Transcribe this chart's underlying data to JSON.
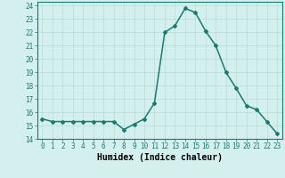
{
  "x": [
    0,
    1,
    2,
    3,
    4,
    5,
    6,
    7,
    8,
    9,
    10,
    11,
    12,
    13,
    14,
    15,
    16,
    17,
    18,
    19,
    20,
    21,
    22,
    23
  ],
  "y": [
    15.5,
    15.3,
    15.3,
    15.3,
    15.3,
    15.3,
    15.3,
    15.3,
    14.7,
    15.1,
    15.5,
    16.7,
    22.0,
    22.5,
    23.8,
    23.5,
    22.1,
    21.0,
    19.0,
    17.8,
    16.5,
    16.2,
    15.3,
    14.4
  ],
  "xlabel": "Humidex (Indice chaleur)",
  "xlim": [
    -0.5,
    23.5
  ],
  "ylim": [
    14,
    24.3
  ],
  "yticks": [
    14,
    15,
    16,
    17,
    18,
    19,
    20,
    21,
    22,
    23,
    24
  ],
  "xticks": [
    0,
    1,
    2,
    3,
    4,
    5,
    6,
    7,
    8,
    9,
    10,
    11,
    12,
    13,
    14,
    15,
    16,
    17,
    18,
    19,
    20,
    21,
    22,
    23
  ],
  "line_color": "#1a7a6e",
  "marker": "D",
  "marker_size": 2.0,
  "bg_color": "#d4f0ee",
  "grid_color": "#b8dcd8",
  "tick_label_fontsize": 5.5,
  "xlabel_fontsize": 7.0,
  "line_width": 1.1
}
